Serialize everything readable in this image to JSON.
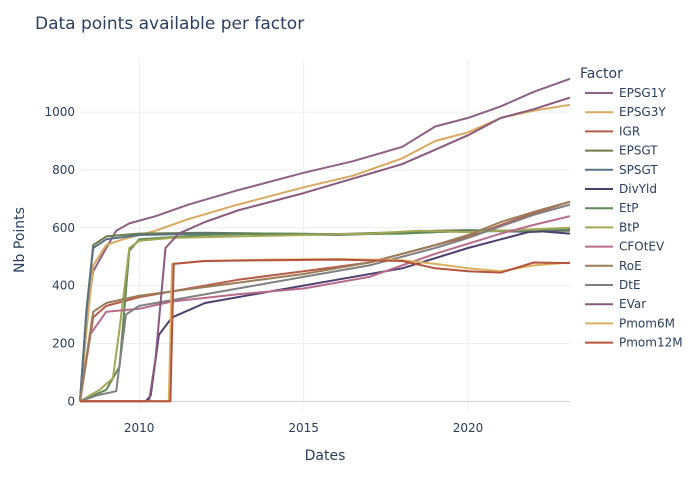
{
  "chart_data": {
    "type": "line",
    "title": "Data points available per factor",
    "xlabel": "Dates",
    "ylabel": "Nb Points",
    "legend_title": "Factor",
    "legend_position": "right",
    "grid": true,
    "xlim": [
      2008.2,
      2023.1
    ],
    "ylim": [
      -30,
      1180
    ],
    "x_ticks": [
      2010,
      2015,
      2020
    ],
    "x_tick_labels": [
      "2010",
      "2015",
      "2020"
    ],
    "y_ticks": [
      0,
      200,
      400,
      600,
      800,
      1000
    ],
    "y_tick_labels": [
      "0",
      "200",
      "400",
      "600",
      "800",
      "1000"
    ],
    "series": [
      {
        "name": "EPSG1Y",
        "color": "#8e6087",
        "x": [
          2008.2,
          2008.4,
          2008.6,
          2009.0,
          2009.3,
          2009.7,
          2010.5,
          2011.5,
          2013.0,
          2015.0,
          2016.5,
          2018.0,
          2019.0,
          2020.0,
          2021.0,
          2022.0,
          2023.1
        ],
        "y": [
          0,
          300,
          450,
          530,
          590,
          615,
          640,
          680,
          730,
          790,
          830,
          880,
          950,
          980,
          1020,
          1070,
          1115
        ]
      },
      {
        "name": "EPSG3Y",
        "color": "#d9a95f",
        "x": [
          2008.2,
          2008.4,
          2008.6,
          2009.0,
          2009.5,
          2010.5,
          2011.5,
          2013.0,
          2015.0,
          2016.5,
          2018.0,
          2019.0,
          2020.0,
          2021.0,
          2022.0,
          2023.1
        ],
        "y": [
          0,
          250,
          470,
          540,
          560,
          590,
          630,
          680,
          740,
          780,
          840,
          900,
          930,
          980,
          1005,
          1025
        ]
      },
      {
        "name": "IGR",
        "color": "#b85c4a",
        "x": [
          2008.2,
          2008.6,
          2009.0,
          2010.0,
          2011.0,
          2013.0,
          2015.0,
          2017.0,
          2019.0,
          2020.0,
          2021.0,
          2022.0,
          2023.1
        ],
        "y": [
          0,
          290,
          330,
          360,
          380,
          420,
          450,
          480,
          540,
          570,
          610,
          650,
          690
        ]
      },
      {
        "name": "EPSGT",
        "color": "#6b7b4a",
        "x": [
          2008.2,
          2008.4,
          2008.6,
          2009.0,
          2010.0,
          2012.0,
          2014.0,
          2016.0,
          2018.0,
          2019.0,
          2020.0,
          2021.0,
          2022.0,
          2023.1
        ],
        "y": [
          0,
          320,
          540,
          570,
          580,
          583,
          580,
          578,
          585,
          590,
          592,
          590,
          588,
          590
        ]
      },
      {
        "name": "SPSGT",
        "color": "#5a7286",
        "x": [
          2008.2,
          2008.4,
          2008.6,
          2009.0,
          2010.0,
          2012.0,
          2014.0,
          2016.0,
          2018.0,
          2019.0,
          2020.0,
          2021.0,
          2022.0,
          2023.1
        ],
        "y": [
          0,
          320,
          530,
          560,
          575,
          580,
          578,
          575,
          582,
          585,
          590,
          588,
          585,
          595
        ]
      },
      {
        "name": "DivYld",
        "color": "#4e3f6e",
        "x": [
          2008.2,
          2010.2,
          2010.35,
          2010.6,
          2011.0,
          2012.0,
          2014.0,
          2016.0,
          2018.0,
          2020.0,
          2021.0,
          2022.0,
          2023.1
        ],
        "y": [
          0,
          0,
          20,
          230,
          290,
          340,
          380,
          420,
          460,
          530,
          560,
          590,
          580
        ]
      },
      {
        "name": "EtP",
        "color": "#5e8a55",
        "x": [
          2008.2,
          2009.0,
          2009.4,
          2009.7,
          2010.0,
          2012.0,
          2014.0,
          2016.0,
          2018.0,
          2019.0,
          2020.0,
          2021.0,
          2022.0,
          2023.1
        ],
        "y": [
          0,
          40,
          120,
          520,
          560,
          575,
          580,
          578,
          580,
          585,
          588,
          590,
          592,
          598
        ]
      },
      {
        "name": "BtP",
        "color": "#a3a857",
        "x": [
          2008.2,
          2008.8,
          2009.2,
          2009.4,
          2009.7,
          2010.0,
          2011.0,
          2013.0,
          2015.0,
          2017.0,
          2018.5,
          2020.0,
          2021.0,
          2022.0,
          2023.1
        ],
        "y": [
          0,
          40,
          80,
          250,
          530,
          555,
          565,
          570,
          575,
          580,
          590,
          585,
          590,
          595,
          600
        ]
      },
      {
        "name": "CFOtEV",
        "color": "#b86c8a",
        "x": [
          2008.2,
          2008.5,
          2009.0,
          2010.0,
          2011.0,
          2013.0,
          2015.0,
          2017.0,
          2019.0,
          2020.0,
          2021.0,
          2022.0,
          2023.1
        ],
        "y": [
          0,
          230,
          310,
          320,
          345,
          370,
          390,
          430,
          510,
          545,
          580,
          610,
          640
        ]
      },
      {
        "name": "RoE",
        "color": "#9a7d5a",
        "x": [
          2008.2,
          2008.6,
          2009.0,
          2010.0,
          2011.0,
          2013.0,
          2015.0,
          2017.0,
          2019.0,
          2020.0,
          2021.0,
          2022.0,
          2023.1
        ],
        "y": [
          0,
          310,
          340,
          365,
          380,
          410,
          440,
          480,
          540,
          575,
          620,
          655,
          690
        ]
      },
      {
        "name": "DtE",
        "color": "#808080",
        "x": [
          2008.2,
          2008.7,
          2009.3,
          2009.6,
          2010.0,
          2011.0,
          2013.0,
          2015.0,
          2017.0,
          2019.0,
          2020.0,
          2021.0,
          2022.0,
          2023.1
        ],
        "y": [
          0,
          20,
          35,
          300,
          330,
          350,
          390,
          430,
          470,
          530,
          565,
          605,
          645,
          680
        ]
      },
      {
        "name": "EVar",
        "color": "#8a5a7e",
        "x": [
          2008.2,
          2010.3,
          2010.5,
          2010.8,
          2011.2,
          2012.0,
          2013.0,
          2015.0,
          2016.5,
          2018.0,
          2019.0,
          2020.0,
          2021.0,
          2022.0,
          2023.1
        ],
        "y": [
          0,
          0,
          150,
          530,
          580,
          620,
          660,
          720,
          770,
          820,
          870,
          920,
          980,
          1010,
          1050
        ]
      },
      {
        "name": "Pmom6M",
        "color": "#dcb060",
        "x": [
          2008.2,
          2010.9,
          2011.0,
          2012.0,
          2014.0,
          2016.0,
          2018.0,
          2019.0,
          2020.0,
          2021.0,
          2022.0,
          2023.1
        ],
        "y": [
          0,
          0,
          475,
          485,
          490,
          492,
          488,
          475,
          460,
          450,
          470,
          480
        ]
      },
      {
        "name": "Pmom12M",
        "color": "#b5543e",
        "x": [
          2008.2,
          2010.95,
          2011.05,
          2012.0,
          2014.0,
          2016.0,
          2018.0,
          2019.0,
          2020.0,
          2021.0,
          2022.0,
          2023.1
        ],
        "y": [
          0,
          0,
          475,
          485,
          488,
          490,
          485,
          460,
          450,
          445,
          480,
          478
        ]
      }
    ]
  }
}
